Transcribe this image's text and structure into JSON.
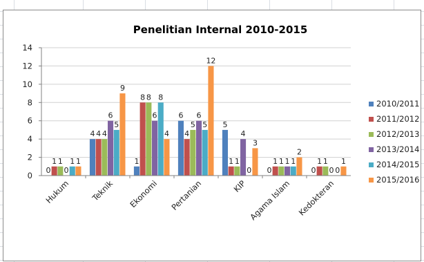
{
  "chart_data": {
    "type": "bar",
    "title": "Penelitian Internal 2010-2015",
    "xlabel": "",
    "ylabel": "",
    "ylim": [
      0,
      14
    ],
    "y_ticks": [
      "0",
      "2",
      "4",
      "6",
      "8",
      "10",
      "12",
      "14"
    ],
    "categories": [
      "Hukum",
      "Teknik",
      "Ekonomi",
      "Pertanian",
      "KIP",
      "Agama Islam",
      "Kedokteran"
    ],
    "grid": true,
    "legend_position": "right",
    "series": [
      {
        "name": "2010/2011",
        "color": "#4f81bd",
        "values": [
          0,
          4,
          1,
          6,
          5,
          0,
          0
        ]
      },
      {
        "name": "2011/2012",
        "color": "#c0504d",
        "values": [
          1,
          4,
          8,
          4,
          1,
          1,
          1
        ]
      },
      {
        "name": "2012/2013",
        "color": "#9bbb59",
        "values": [
          1,
          4,
          8,
          5,
          1,
          1,
          1
        ]
      },
      {
        "name": "2013/2014",
        "color": "#8064a2",
        "values": [
          0,
          6,
          6,
          6,
          4,
          1,
          0
        ]
      },
      {
        "name": "2014/2015",
        "color": "#4bacc6",
        "values": [
          1,
          5,
          8,
          5,
          0,
          1,
          0
        ]
      },
      {
        "name": "2015/2016",
        "color": "#f79646",
        "values": [
          1,
          9,
          4,
          12,
          3,
          2,
          1
        ]
      }
    ]
  }
}
